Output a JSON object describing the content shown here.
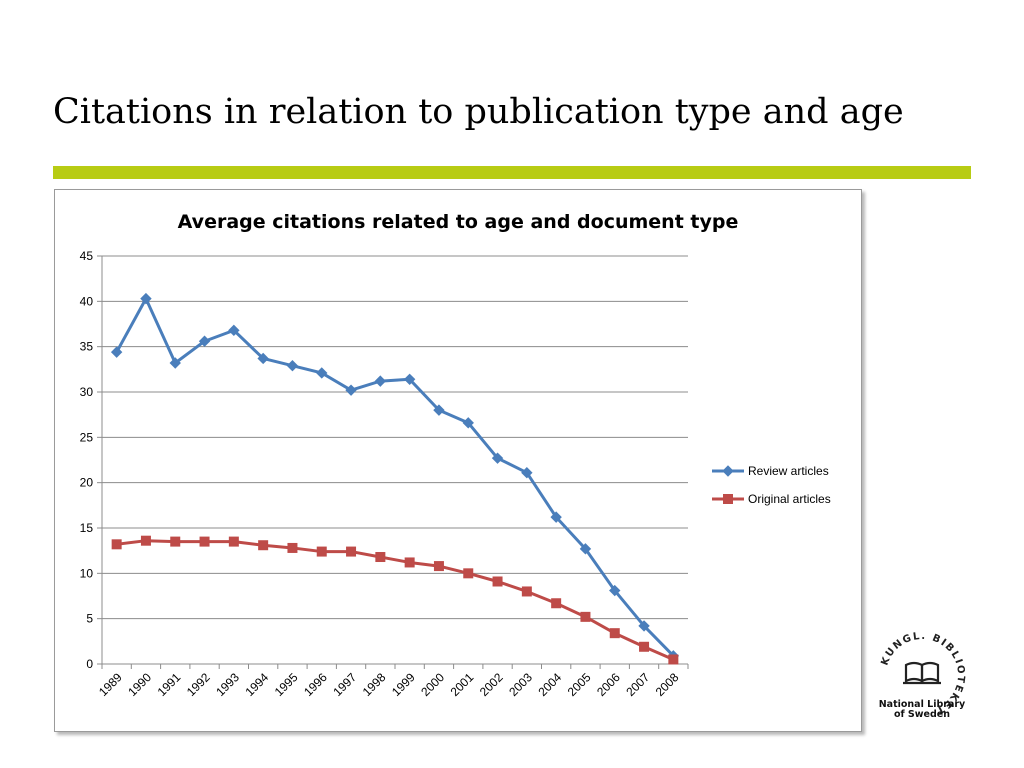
{
  "slide": {
    "title": "Citations in relation to publication type and age",
    "accent_color": "#b8cc14"
  },
  "logo": {
    "seal_text": "KUNGL. BIBLIOTEKET",
    "name_line1": "National Library",
    "name_line2": "of Sweden"
  },
  "chart_data": {
    "type": "line",
    "title": "Average citations related to age and document type",
    "xlabel": "",
    "ylabel": "",
    "ylim": [
      0,
      45
    ],
    "yticks": [
      0,
      5,
      10,
      15,
      20,
      25,
      30,
      35,
      40,
      45
    ],
    "grid": "horizontal",
    "legend_position": "right",
    "categories": [
      "1989",
      "1990",
      "1991",
      "1992",
      "1993",
      "1994",
      "1995",
      "1996",
      "1997",
      "1998",
      "1999",
      "2000",
      "2001",
      "2002",
      "2003",
      "2004",
      "2005",
      "2006",
      "2007",
      "2008"
    ],
    "series": [
      {
        "name": "Review articles",
        "color": "#4a7ebb",
        "marker": "diamond",
        "values": [
          34.4,
          40.3,
          33.2,
          35.6,
          36.8,
          33.7,
          32.9,
          32.1,
          30.2,
          31.2,
          31.4,
          28.0,
          26.6,
          22.7,
          21.1,
          16.2,
          12.7,
          8.1,
          4.2,
          0.9
        ]
      },
      {
        "name": "Original articles",
        "color": "#be4b48",
        "marker": "square",
        "values": [
          13.2,
          13.6,
          13.5,
          13.5,
          13.5,
          13.1,
          12.8,
          12.4,
          12.4,
          11.8,
          11.2,
          10.8,
          10.0,
          9.1,
          8.0,
          6.7,
          5.2,
          3.4,
          1.9,
          0.5
        ]
      }
    ]
  }
}
